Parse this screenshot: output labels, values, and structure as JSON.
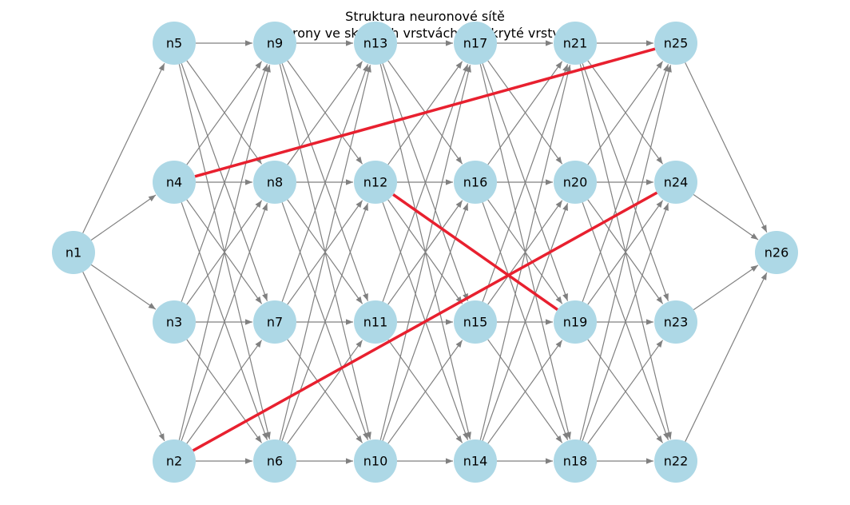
{
  "title": "Struktura neuronové sítě",
  "subtitle": "Neurony ve skrytých vrstvách: 4, Skryté vrstvy: 6",
  "colors": {
    "node_fill": "#add8e6",
    "edge": "#808080",
    "highlight_edge": "#e8202f"
  },
  "layers": [
    [
      "n1"
    ],
    [
      "n5",
      "n4",
      "n3",
      "n2"
    ],
    [
      "n9",
      "n8",
      "n7",
      "n6"
    ],
    [
      "n13",
      "n12",
      "n11",
      "n10"
    ],
    [
      "n17",
      "n16",
      "n15",
      "n14"
    ],
    [
      "n21",
      "n20",
      "n19",
      "n18"
    ],
    [
      "n25",
      "n24",
      "n23",
      "n22"
    ],
    [
      "n26"
    ]
  ],
  "edges": [
    [
      "n1",
      "n5"
    ],
    [
      "n1",
      "n4"
    ],
    [
      "n1",
      "n3"
    ],
    [
      "n1",
      "n2"
    ],
    [
      "n5",
      "n9"
    ],
    [
      "n5",
      "n8"
    ],
    [
      "n5",
      "n7"
    ],
    [
      "n5",
      "n6"
    ],
    [
      "n4",
      "n9"
    ],
    [
      "n4",
      "n8"
    ],
    [
      "n4",
      "n7"
    ],
    [
      "n4",
      "n6"
    ],
    [
      "n3",
      "n9"
    ],
    [
      "n3",
      "n8"
    ],
    [
      "n3",
      "n7"
    ],
    [
      "n3",
      "n6"
    ],
    [
      "n2",
      "n9"
    ],
    [
      "n2",
      "n8"
    ],
    [
      "n2",
      "n7"
    ],
    [
      "n2",
      "n6"
    ],
    [
      "n9",
      "n13"
    ],
    [
      "n9",
      "n12"
    ],
    [
      "n9",
      "n11"
    ],
    [
      "n9",
      "n10"
    ],
    [
      "n8",
      "n13"
    ],
    [
      "n8",
      "n12"
    ],
    [
      "n8",
      "n11"
    ],
    [
      "n8",
      "n10"
    ],
    [
      "n7",
      "n13"
    ],
    [
      "n7",
      "n12"
    ],
    [
      "n7",
      "n11"
    ],
    [
      "n7",
      "n10"
    ],
    [
      "n6",
      "n13"
    ],
    [
      "n6",
      "n12"
    ],
    [
      "n6",
      "n11"
    ],
    [
      "n6",
      "n10"
    ],
    [
      "n13",
      "n17"
    ],
    [
      "n13",
      "n16"
    ],
    [
      "n13",
      "n15"
    ],
    [
      "n13",
      "n14"
    ],
    [
      "n12",
      "n17"
    ],
    [
      "n12",
      "n16"
    ],
    [
      "n12",
      "n15"
    ],
    [
      "n12",
      "n14"
    ],
    [
      "n11",
      "n17"
    ],
    [
      "n11",
      "n16"
    ],
    [
      "n11",
      "n15"
    ],
    [
      "n11",
      "n14"
    ],
    [
      "n10",
      "n17"
    ],
    [
      "n10",
      "n16"
    ],
    [
      "n10",
      "n15"
    ],
    [
      "n10",
      "n14"
    ],
    [
      "n17",
      "n21"
    ],
    [
      "n17",
      "n20"
    ],
    [
      "n17",
      "n19"
    ],
    [
      "n17",
      "n18"
    ],
    [
      "n16",
      "n21"
    ],
    [
      "n16",
      "n20"
    ],
    [
      "n16",
      "n19"
    ],
    [
      "n16",
      "n18"
    ],
    [
      "n15",
      "n21"
    ],
    [
      "n15",
      "n20"
    ],
    [
      "n15",
      "n19"
    ],
    [
      "n15",
      "n18"
    ],
    [
      "n14",
      "n21"
    ],
    [
      "n14",
      "n20"
    ],
    [
      "n14",
      "n19"
    ],
    [
      "n14",
      "n18"
    ],
    [
      "n21",
      "n25"
    ],
    [
      "n21",
      "n24"
    ],
    [
      "n21",
      "n23"
    ],
    [
      "n21",
      "n22"
    ],
    [
      "n20",
      "n25"
    ],
    [
      "n20",
      "n24"
    ],
    [
      "n20",
      "n23"
    ],
    [
      "n20",
      "n22"
    ],
    [
      "n19",
      "n25"
    ],
    [
      "n19",
      "n24"
    ],
    [
      "n19",
      "n23"
    ],
    [
      "n19",
      "n22"
    ],
    [
      "n18",
      "n25"
    ],
    [
      "n18",
      "n24"
    ],
    [
      "n18",
      "n23"
    ],
    [
      "n18",
      "n22"
    ],
    [
      "n25",
      "n26"
    ],
    [
      "n24",
      "n26"
    ],
    [
      "n23",
      "n26"
    ],
    [
      "n22",
      "n26"
    ]
  ],
  "highlighted_edges": [
    [
      "n4",
      "n25"
    ],
    [
      "n12",
      "n19"
    ],
    [
      "n2",
      "n24"
    ]
  ]
}
